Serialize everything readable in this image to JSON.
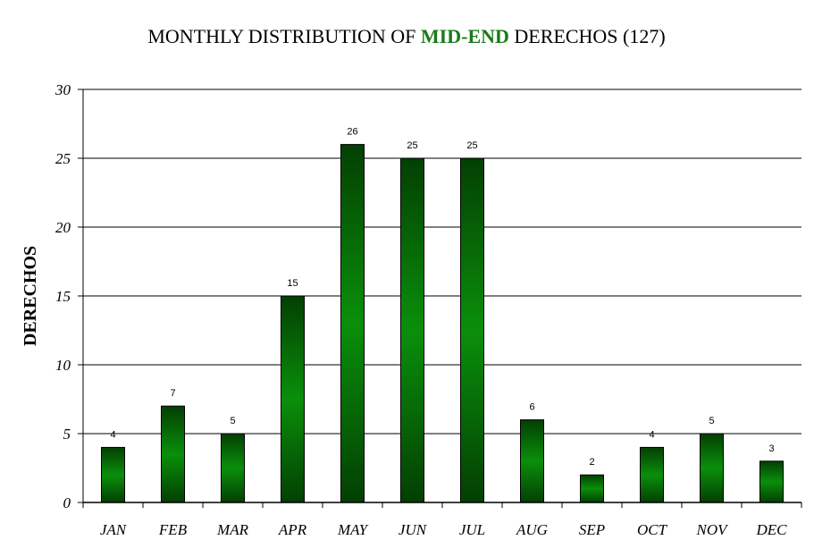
{
  "colors": {
    "bar_light": "#0a8f0a",
    "bar_dark": "#033f03",
    "highlight": "#1a7a1a"
  },
  "chart_data": {
    "type": "bar",
    "title_parts": [
      {
        "text": "MONTHLY DISTRIBUTION OF ",
        "highlight": false
      },
      {
        "text": "MID-END",
        "highlight": true
      },
      {
        "text": " DERECHOS (127)",
        "highlight": false
      }
    ],
    "xlabel": "",
    "ylabel": "DERECHOS",
    "categories": [
      "JAN",
      "FEB",
      "MAR",
      "APR",
      "MAY",
      "JUN",
      "JUL",
      "AUG",
      "SEP",
      "OCT",
      "NOV",
      "DEC"
    ],
    "values": [
      4,
      7,
      5,
      15,
      26,
      25,
      25,
      6,
      2,
      4,
      5,
      3
    ],
    "ylim": [
      0,
      30
    ],
    "yticks": [
      0,
      5,
      10,
      15,
      20,
      25,
      30
    ],
    "grid": true,
    "legend": false
  }
}
